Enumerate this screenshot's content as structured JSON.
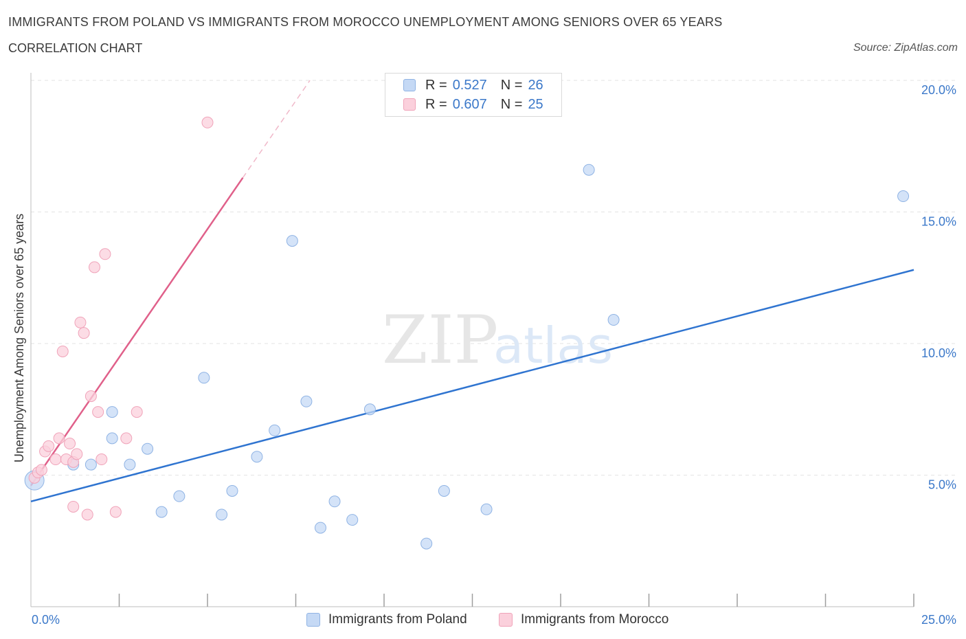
{
  "header": {
    "title": "IMMIGRANTS FROM POLAND VS IMMIGRANTS FROM MOROCCO UNEMPLOYMENT AMONG SENIORS OVER 65 YEARS",
    "subtitle": "CORRELATION CHART",
    "source": "Source: ZipAtlas.com"
  },
  "watermark": {
    "zip": "ZIP",
    "atlas": "atlas"
  },
  "legend_top": {
    "poland": {
      "r_label": "R =",
      "r_value": "0.527",
      "n_label": "N =",
      "n_value": "26"
    },
    "morocco": {
      "r_label": "R =",
      "r_value": "0.607",
      "n_label": "N =",
      "n_value": "25"
    }
  },
  "legend_bottom": {
    "poland": "Immigrants from Poland",
    "morocco": "Immigrants from Morocco"
  },
  "colors": {
    "poland_fill": "#c5d9f5",
    "poland_stroke": "#8fb3e4",
    "poland_line": "#2f74d0",
    "morocco_fill": "#fbd0dc",
    "morocco_stroke": "#f0a3b9",
    "morocco_line": "#e0608a",
    "tick": "#3b78c9",
    "grid": "#e3e3e3"
  },
  "chart_data": {
    "type": "scatter",
    "title": "IMMIGRANTS FROM POLAND VS IMMIGRANTS FROM MOROCCO UNEMPLOYMENT AMONG SENIORS OVER 65 YEARS",
    "xlabel": "",
    "ylabel": "Unemployment Among Seniors over 65 years",
    "xlim": [
      0,
      25
    ],
    "ylim": [
      0,
      20
    ],
    "x_tick_labels": [
      "0.0%",
      "25.0%"
    ],
    "y_ticks": [
      5,
      10,
      15,
      20
    ],
    "y_tick_labels": [
      "5.0%",
      "10.0%",
      "15.0%",
      "20.0%"
    ],
    "grid": true,
    "series": [
      {
        "name": "Immigrants from Poland",
        "points": [
          {
            "x": 0.1,
            "y": 4.8,
            "big": true
          },
          {
            "x": 1.2,
            "y": 5.4
          },
          {
            "x": 1.7,
            "y": 5.4
          },
          {
            "x": 2.3,
            "y": 7.4
          },
          {
            "x": 2.3,
            "y": 6.4
          },
          {
            "x": 2.8,
            "y": 5.4
          },
          {
            "x": 3.3,
            "y": 6.0
          },
          {
            "x": 3.7,
            "y": 3.6
          },
          {
            "x": 4.2,
            "y": 4.2
          },
          {
            "x": 4.9,
            "y": 8.7
          },
          {
            "x": 5.4,
            "y": 3.5
          },
          {
            "x": 5.7,
            "y": 4.4
          },
          {
            "x": 6.4,
            "y": 5.7
          },
          {
            "x": 6.9,
            "y": 6.7
          },
          {
            "x": 7.4,
            "y": 13.9
          },
          {
            "x": 7.8,
            "y": 7.8
          },
          {
            "x": 8.2,
            "y": 3.0
          },
          {
            "x": 8.6,
            "y": 4.0
          },
          {
            "x": 9.1,
            "y": 3.3
          },
          {
            "x": 9.6,
            "y": 7.5
          },
          {
            "x": 11.2,
            "y": 2.4
          },
          {
            "x": 11.7,
            "y": 4.4
          },
          {
            "x": 12.9,
            "y": 3.7
          },
          {
            "x": 15.8,
            "y": 16.6
          },
          {
            "x": 16.5,
            "y": 10.9
          },
          {
            "x": 24.7,
            "y": 15.6
          }
        ],
        "trend": {
          "x1": 0,
          "y1": 4.0,
          "x2": 25,
          "y2": 12.8
        }
      },
      {
        "name": "Immigrants from Morocco",
        "points": [
          {
            "x": 0.1,
            "y": 4.9
          },
          {
            "x": 0.2,
            "y": 5.1
          },
          {
            "x": 0.3,
            "y": 5.2
          },
          {
            "x": 0.4,
            "y": 5.9
          },
          {
            "x": 0.5,
            "y": 6.1
          },
          {
            "x": 0.7,
            "y": 5.6
          },
          {
            "x": 0.8,
            "y": 6.4
          },
          {
            "x": 0.9,
            "y": 9.7
          },
          {
            "x": 1.0,
            "y": 5.6
          },
          {
            "x": 1.1,
            "y": 6.2
          },
          {
            "x": 1.2,
            "y": 5.5
          },
          {
            "x": 1.3,
            "y": 5.8
          },
          {
            "x": 1.2,
            "y": 3.8
          },
          {
            "x": 1.4,
            "y": 10.8
          },
          {
            "x": 1.5,
            "y": 10.4
          },
          {
            "x": 1.6,
            "y": 3.5
          },
          {
            "x": 1.7,
            "y": 8.0
          },
          {
            "x": 1.8,
            "y": 12.9
          },
          {
            "x": 1.9,
            "y": 7.4
          },
          {
            "x": 2.0,
            "y": 5.6
          },
          {
            "x": 2.1,
            "y": 13.4
          },
          {
            "x": 2.4,
            "y": 3.6
          },
          {
            "x": 2.7,
            "y": 6.4
          },
          {
            "x": 3.0,
            "y": 7.4
          },
          {
            "x": 5.0,
            "y": 18.4
          }
        ],
        "trend": {
          "x1": 0,
          "y1": 4.6,
          "x2": 6.0,
          "y2": 16.3
        },
        "trend_dashed": {
          "x1": 6.0,
          "y1": 16.3,
          "x2": 7.9,
          "y2": 20.0
        }
      }
    ]
  }
}
